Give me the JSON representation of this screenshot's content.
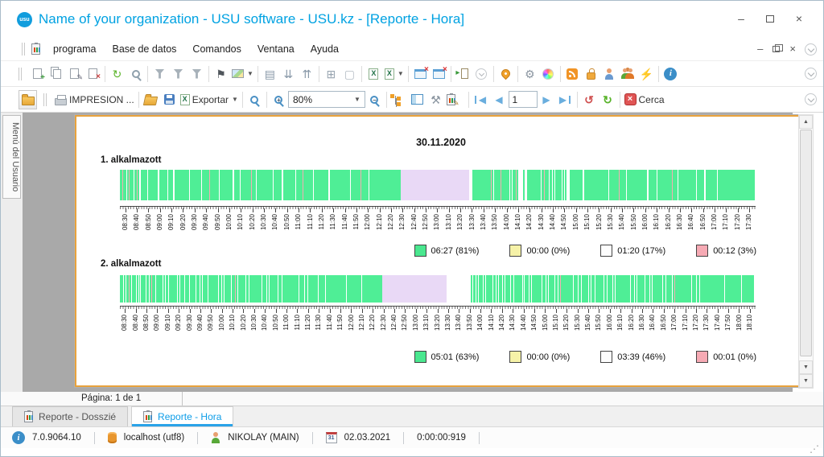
{
  "window": {
    "title": "Name of your organization - USU software - USU.kz - [Reporte - Hora]"
  },
  "menu": {
    "items": [
      "programa",
      "Base de datos",
      "Comandos",
      "Ventana",
      "Ayuda"
    ]
  },
  "toolbar_main": {
    "groups": [
      [
        {
          "name": "add-record",
          "cls": "pg pgp"
        },
        {
          "name": "copy-record",
          "cls": "copy"
        },
        {
          "name": "edit-record",
          "cls": "pg pge"
        },
        {
          "name": "delete-record",
          "cls": "pg pgx"
        }
      ],
      [
        {
          "name": "refresh",
          "glyph": "↻",
          "color": "#5cb52c"
        },
        {
          "name": "search",
          "cls": "mag"
        }
      ],
      [
        {
          "name": "filter",
          "cls": "funnel"
        },
        {
          "name": "filter-edit",
          "cls": "funnel"
        },
        {
          "name": "filter-check",
          "cls": "funnel fch"
        }
      ],
      [
        {
          "name": "flag",
          "glyph": "⚑",
          "color": "#50565c"
        },
        {
          "name": "image-menu",
          "cls": "img",
          "caret": true
        }
      ],
      [
        {
          "name": "add-to-list",
          "glyph": "▤",
          "color": "#8898a8"
        },
        {
          "name": "collapse-all",
          "glyph": "⇊",
          "color": "#8898a8"
        },
        {
          "name": "expand-all",
          "glyph": "⇈",
          "color": "#8898a8"
        }
      ],
      [
        {
          "name": "insert-row",
          "glyph": "⊞",
          "color": "#98a4b0"
        },
        {
          "name": "blank-page",
          "glyph": "▢",
          "color": "#b4bcc4"
        }
      ],
      [
        {
          "name": "excel-copy",
          "cls": "xls"
        },
        {
          "name": "excel-export",
          "cls": "xls",
          "caret": true
        }
      ],
      [
        {
          "name": "close-window",
          "cls": "win"
        },
        {
          "name": "close-all-windows",
          "cls": "win"
        }
      ],
      [
        {
          "name": "exit",
          "cls": "door"
        },
        {
          "name": "more-circle",
          "cls": "circ"
        }
      ],
      [
        {
          "name": "location-pin",
          "cls": "pin"
        }
      ],
      [
        {
          "name": "settings-gear",
          "glyph": "⚙",
          "color": "#8a95a0"
        },
        {
          "name": "color-wheel",
          "cls": "wheel"
        }
      ],
      [
        {
          "name": "rss",
          "cls": "rss"
        },
        {
          "name": "lock",
          "cls": "lock"
        },
        {
          "name": "user-key",
          "cls": "person pblue"
        },
        {
          "name": "users-group",
          "cls": "group"
        },
        {
          "name": "plug",
          "glyph": "⚡",
          "color": "#9aa0c0"
        }
      ],
      [
        {
          "name": "info",
          "cls": "info"
        }
      ]
    ]
  },
  "toolbar_report": {
    "impresion_label": "IMPRESION ...",
    "exportar_label": "Exportar",
    "zoom_value": "80%",
    "page_value": "1",
    "cerca_label": "Cerca"
  },
  "sidebar": {
    "tab_label": "Menú del Usuario"
  },
  "report": {
    "date_title": "30.11.2020",
    "page_footer": "Página: 1 de 1",
    "colors": {
      "g": "#4fee96",
      "w": "#ffffff",
      "p": "#f2aeb2",
      "l": "#e9d9f6"
    },
    "charts": [
      {
        "name": "1. alkalmazott",
        "time_start": "08:30",
        "time_end": "17:30",
        "tick_step_minutes": 10,
        "ticks": [
          "08:30",
          "08:40",
          "08:50",
          "09:00",
          "09:10",
          "09:20",
          "09:30",
          "09:40",
          "09:50",
          "10:00",
          "10:10",
          "10:20",
          "10:30",
          "10:40",
          "10:50",
          "11:00",
          "11:10",
          "11:20",
          "11:30",
          "11:40",
          "11:50",
          "12:00",
          "12:10",
          "12:20",
          "12:30",
          "12:40",
          "12:50",
          "13:00",
          "13:10",
          "13:20",
          "13:30",
          "13:40",
          "13:50",
          "14:00",
          "14:10",
          "14:20",
          "14:30",
          "14:40",
          "14:50",
          "15:00",
          "15:10",
          "15:20",
          "15:30",
          "15:40",
          "15:50",
          "16:00",
          "16:10",
          "16:20",
          "16:30",
          "16:40",
          "16:50",
          "17:00",
          "17:10",
          "17:20",
          "17:30"
        ],
        "segments": "3g 1p 4g 1w 2g 1p 5g 1w 3g 1p 2g 2w 8g 1w 12g 2w 10g 1w 6g 2w 18g 1w 14g 1w 9g 1p 11g 1w 16g 2w 7g 1w 13g 1p 5g 1w 20g 1w 10g 2w 15g 1w 8g 1p 12g 1w 18g 2w 25g 1w 12g 1p 9g 1w 39g 85l 4w 23g 1p 2g 1w 8g 1p 10g 1w 2g 1w 4g 1p 2g 6w 2g 3w 17g 1w 3g 1p 5g 1w 3g 1w 2g 1w 8g 1w 2g 1w 2g 4w 16g 2w 30g 1w 12g 1p 8g 1w 25g 2w 10g 1w 18g 1p 6g 1w 22g 1w 9g 2w 14g 1w 46g",
        "legend": [
          {
            "color": "#4ae78f",
            "label": "06:27 (81%)"
          },
          {
            "color": "#f6f2a8",
            "label": "00:00 (0%)"
          },
          {
            "color": "#fdfdfd",
            "label": "01:20 (17%)"
          },
          {
            "color": "#f6aab4",
            "label": "00:12 (3%)"
          }
        ]
      },
      {
        "name": "2. alkalmazott",
        "time_start": "08:30",
        "time_end": "18:10",
        "tick_step_minutes": 10,
        "ticks": [
          "08:30",
          "08:40",
          "08:50",
          "09:00",
          "09:10",
          "09:20",
          "09:30",
          "09:40",
          "09:50",
          "10:00",
          "10:10",
          "10:20",
          "10:30",
          "10:40",
          "10:50",
          "11:00",
          "11:10",
          "11:20",
          "11:30",
          "11:40",
          "11:50",
          "12:00",
          "12:10",
          "12:20",
          "12:30",
          "12:40",
          "12:50",
          "13:00",
          "13:10",
          "13:20",
          "13:30",
          "13:40",
          "13:50",
          "14:00",
          "14:10",
          "14:20",
          "14:30",
          "14:40",
          "14:50",
          "15:00",
          "15:10",
          "15:20",
          "15:30",
          "15:40",
          "15:50",
          "16:00",
          "16:10",
          "16:20",
          "16:30",
          "16:40",
          "16:50",
          "17:00",
          "17:10",
          "17:20",
          "17:30",
          "17:40",
          "17:50",
          "18:00",
          "18:10"
        ],
        "segments": "4g 1w 2g 1w 3g 1p 2g 1w 5g 1w 2g 1w 1g 1w 6g 1w 3g 1w 2g 1p 4g 1w 8g 1w 2g 1w 3g 1w 10g 1w 2g 1w 5g 1w 3g 1p 2g 1w 7g 1w 4g 1w 2g 1w 6g 1w 12g 1w 3g 1w 2g 1w 8g 1w 4g 1p 2g 1w 9g 1w 3g 1w 15g 1w 5g 1w 2g 1w 10g 1w 4g 1w 20g 1w 6g 1w 3g 1w 12g 1w 8g 1w 25g 1w 18g 1w 25g 80l 30w 2g 1w 3g 1w 2g 1w 5g 1w 2g 1w 8g 1w 3g 1w 2g 1w 4g 1w 2g 1w 6g 1w 3g 1w 10g 1w 2g 1w 5g 1w 2g 1w 12g 1w 4g 1w 2g 1w 7g 1w 3g 1w 2g 1p 15g 1w 5g 1w 3g 1w 8g 1w 2g 1w 4g 1w 10g 1w 3g 1w 6g 1w 2g 1w 18g 1w 4g 1w 2g 1w 9g 1w 5g 1w 2g 1w 12g 1w 3g 1w 7g 1w 2g 1p 20g 1w 5g 1w 3g 1w 30g 1w 20g 1w 15g",
        "legend": [
          {
            "color": "#4ae78f",
            "label": "05:01 (63%)"
          },
          {
            "color": "#f6f2a8",
            "label": "00:00 (0%)"
          },
          {
            "color": "#fdfdfd",
            "label": "03:39 (46%)"
          },
          {
            "color": "#f6aab4",
            "label": "00:01 (0%)"
          }
        ]
      }
    ]
  },
  "bottom_tabs": [
    {
      "label": "Reporte - Dosszié",
      "active": false
    },
    {
      "label": "Reporte - Hora",
      "active": true
    }
  ],
  "status_bar": {
    "version": "7.0.9064.10",
    "database": "localhost (utf8)",
    "user": "NIKOLAY (MAIN)",
    "calendar_day": "31",
    "date": "02.03.2021",
    "timer": "0:00:00:919"
  }
}
